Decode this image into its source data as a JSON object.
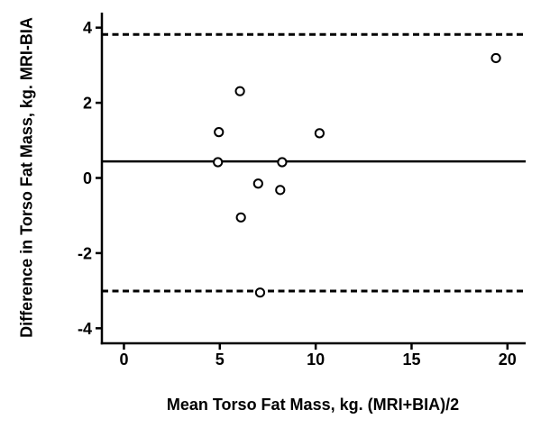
{
  "figure": {
    "background": "#ffffff",
    "foreground": "#000000"
  },
  "chart_data": {
    "type": "scatter",
    "title": "",
    "xlabel": "Mean Torso Fat Mass, kg. (MRI+BIA)/2",
    "ylabel": "Difference in Torso Fat Mass, kg. MRI-BIA",
    "xlim": [
      -1.15,
      20.95
    ],
    "ylim": [
      -4.4,
      4.4
    ],
    "xticks": [
      0,
      5,
      10,
      15,
      20
    ],
    "yticks": [
      -4,
      -2,
      0,
      2,
      4
    ],
    "grid": false,
    "legend": null,
    "series": [
      {
        "name": "subjects",
        "marker": "open-circle",
        "marker_fill": "#ffffff",
        "marker_stroke": "#000000",
        "points": [
          [
            4.9,
            0.42
          ],
          [
            4.95,
            1.22
          ],
          [
            6.05,
            2.31
          ],
          [
            6.1,
            -1.05
          ],
          [
            7.0,
            -0.15
          ],
          [
            7.1,
            -3.05
          ],
          [
            8.15,
            -0.32
          ],
          [
            8.25,
            0.42
          ],
          [
            10.2,
            1.19
          ],
          [
            19.4,
            3.19
          ]
        ]
      }
    ],
    "reference_lines": [
      {
        "name": "upper-limit-of-agreement",
        "y": 3.82,
        "style": "dashed"
      },
      {
        "name": "mean-difference",
        "y": 0.44,
        "style": "solid"
      },
      {
        "name": "lower-limit-of-agreement",
        "y": -3.01,
        "style": "dashed"
      }
    ],
    "colors": {
      "line": "#000000",
      "background": "#ffffff",
      "marker_fill": "#ffffff"
    }
  }
}
